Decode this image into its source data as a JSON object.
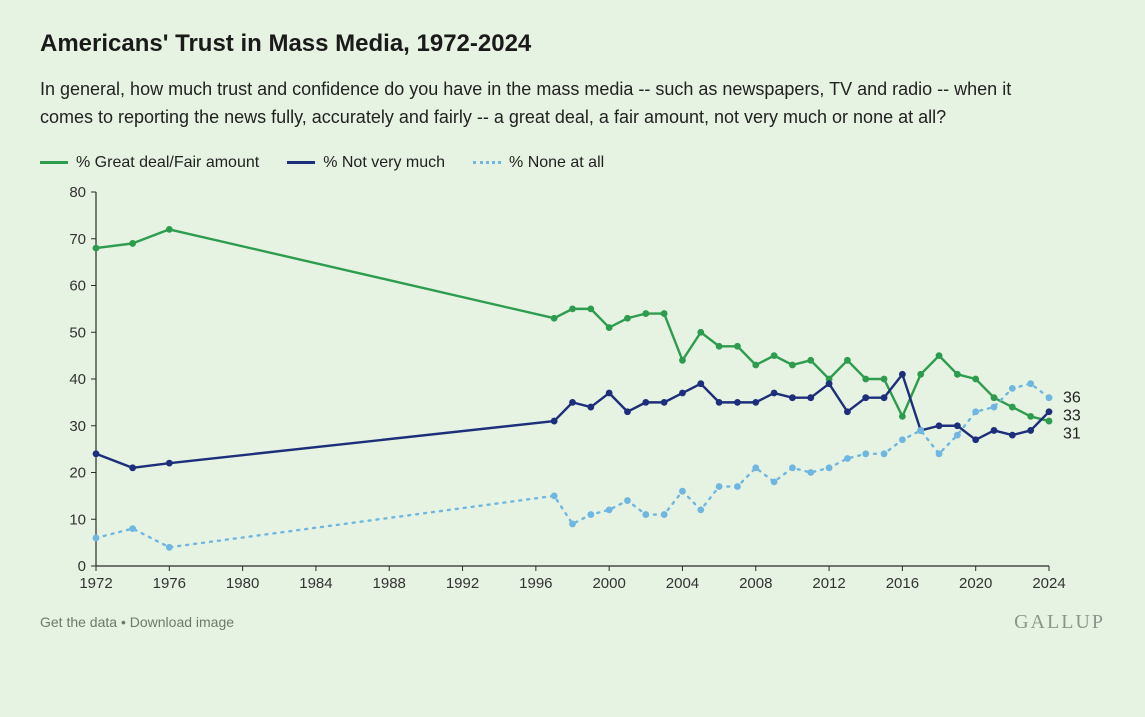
{
  "title": "Americans' Trust in Mass Media, 1972-2024",
  "subtitle": "In general, how much trust and confidence do you have in the mass media -- such as newspapers, TV and radio -- when it comes to reporting the news fully, accurately and fairly -- a great deal, a fair amount, not very much or none at all?",
  "legend": {
    "great": "% Great deal/Fair amount",
    "not": "% Not very much",
    "none": "% None at all"
  },
  "footer": {
    "get_data": "Get the data",
    "sep": " • ",
    "download": "Download image",
    "brand": "GALLUP"
  },
  "chart": {
    "type": "line",
    "background_color": "#e6f2e2",
    "axis_color": "#2b2b2b",
    "tick_font_size": 15,
    "x": {
      "min": 1972,
      "max": 2024,
      "tick_step": 4
    },
    "y": {
      "min": 0,
      "max": 80,
      "tick_step": 10
    },
    "marker_radius": 3.4,
    "line_width": 2.4,
    "series": [
      {
        "id": "great",
        "color": "#2e9c4f",
        "style": "solid",
        "end_label": "31",
        "points": [
          [
            1972,
            68
          ],
          [
            1974,
            69
          ],
          [
            1976,
            72
          ],
          [
            1997,
            53
          ],
          [
            1998,
            55
          ],
          [
            1999,
            55
          ],
          [
            2000,
            51
          ],
          [
            2001,
            53
          ],
          [
            2002,
            54
          ],
          [
            2003,
            54
          ],
          [
            2004,
            44
          ],
          [
            2005,
            50
          ],
          [
            2006,
            47
          ],
          [
            2007,
            47
          ],
          [
            2008,
            43
          ],
          [
            2009,
            45
          ],
          [
            2010,
            43
          ],
          [
            2011,
            44
          ],
          [
            2012,
            40
          ],
          [
            2013,
            44
          ],
          [
            2014,
            40
          ],
          [
            2015,
            40
          ],
          [
            2016,
            32
          ],
          [
            2017,
            41
          ],
          [
            2018,
            45
          ],
          [
            2019,
            41
          ],
          [
            2020,
            40
          ],
          [
            2021,
            36
          ],
          [
            2022,
            34
          ],
          [
            2023,
            32
          ],
          [
            2024,
            31
          ]
        ]
      },
      {
        "id": "not",
        "color": "#1d2e7a",
        "style": "solid",
        "end_label": "33",
        "points": [
          [
            1972,
            24
          ],
          [
            1974,
            21
          ],
          [
            1976,
            22
          ],
          [
            1997,
            31
          ],
          [
            1998,
            35
          ],
          [
            1999,
            34
          ],
          [
            2000,
            37
          ],
          [
            2001,
            33
          ],
          [
            2002,
            35
          ],
          [
            2003,
            35
          ],
          [
            2004,
            37
          ],
          [
            2005,
            39
          ],
          [
            2006,
            35
          ],
          [
            2007,
            35
          ],
          [
            2008,
            35
          ],
          [
            2009,
            37
          ],
          [
            2010,
            36
          ],
          [
            2011,
            36
          ],
          [
            2012,
            39
          ],
          [
            2013,
            33
          ],
          [
            2014,
            36
          ],
          [
            2015,
            36
          ],
          [
            2016,
            41
          ],
          [
            2017,
            29
          ],
          [
            2018,
            30
          ],
          [
            2019,
            30
          ],
          [
            2020,
            27
          ],
          [
            2021,
            29
          ],
          [
            2022,
            28
          ],
          [
            2023,
            29
          ],
          [
            2024,
            33
          ]
        ]
      },
      {
        "id": "none",
        "color": "#6fb7e0",
        "style": "dotted",
        "end_label": "36",
        "points": [
          [
            1972,
            6
          ],
          [
            1974,
            8
          ],
          [
            1976,
            4
          ],
          [
            1997,
            15
          ],
          [
            1998,
            9
          ],
          [
            1999,
            11
          ],
          [
            2000,
            12
          ],
          [
            2001,
            14
          ],
          [
            2002,
            11
          ],
          [
            2003,
            11
          ],
          [
            2004,
            16
          ],
          [
            2005,
            12
          ],
          [
            2006,
            17
          ],
          [
            2007,
            17
          ],
          [
            2008,
            21
          ],
          [
            2009,
            18
          ],
          [
            2010,
            21
          ],
          [
            2011,
            20
          ],
          [
            2012,
            21
          ],
          [
            2013,
            23
          ],
          [
            2014,
            24
          ],
          [
            2015,
            24
          ],
          [
            2016,
            27
          ],
          [
            2017,
            29
          ],
          [
            2018,
            24
          ],
          [
            2019,
            28
          ],
          [
            2020,
            33
          ],
          [
            2021,
            34
          ],
          [
            2022,
            38
          ],
          [
            2023,
            39
          ],
          [
            2024,
            36
          ]
        ]
      }
    ]
  }
}
